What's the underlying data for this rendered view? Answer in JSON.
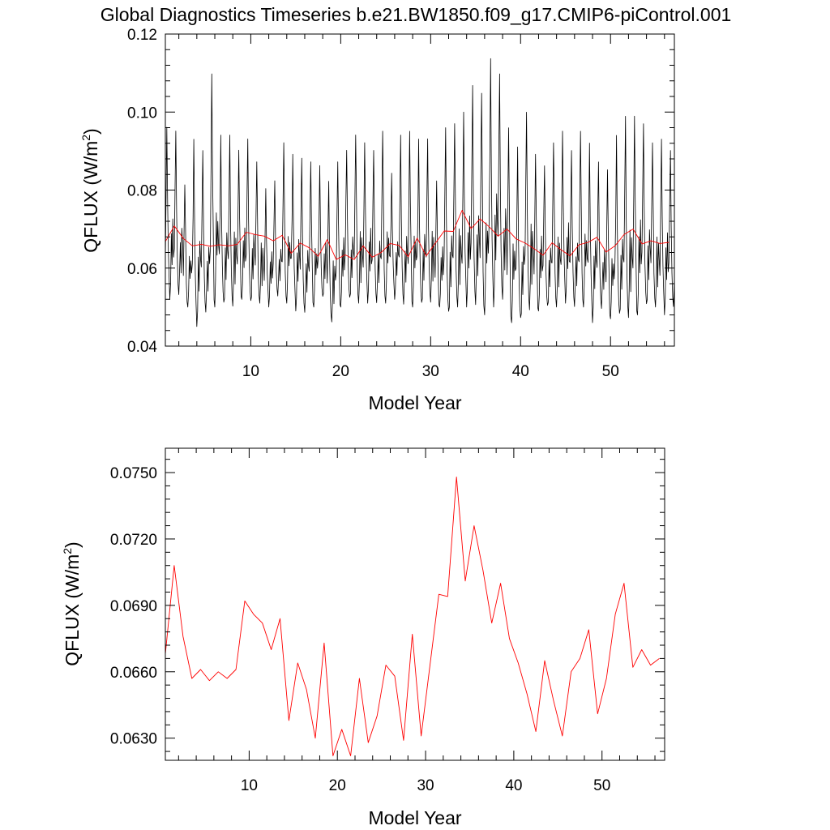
{
  "title": "Global Diagnostics Timeseries b.e21.BW1850.f09_g17.CMIP6-piControl.001",
  "colors": {
    "monthly": "#000000",
    "annual": "#ff0000",
    "axes": "#000000",
    "background": "#ffffff"
  },
  "chart_data": [
    {
      "type": "line",
      "xlabel": "Model Year",
      "ylabel_main": "QFLUX (W/m",
      "ylabel_sup": "2",
      "ylabel_end": ")",
      "xlim": [
        0.5,
        57.1
      ],
      "ylim": [
        0.04,
        0.12
      ],
      "xticks": [
        10,
        20,
        30,
        40,
        50
      ],
      "xtick_labels": [
        "10",
        "20",
        "30",
        "40",
        "50"
      ],
      "yticks": [
        0.04,
        0.06,
        0.08,
        0.1,
        0.12
      ],
      "ytick_labels": [
        "0.04",
        "0.06",
        "0.08",
        "0.10",
        "0.12"
      ],
      "grid": false,
      "series": [
        {
          "key": "monthly",
          "sampling": "monthly",
          "x_start": 0.5,
          "x_step": 0.08333,
          "peaks": [
            0.097,
            0.096,
            0.082,
            0.094,
            0.091,
            0.111,
            0.095,
            0.095,
            0.091,
            0.094,
            0.088,
            0.081,
            0.083,
            0.093,
            0.09,
            0.089,
            0.088,
            0.087,
            0.083,
            0.088,
            0.091,
            0.095,
            0.093,
            0.091,
            0.096,
            0.085,
            0.095,
            0.096,
            0.094,
            0.094,
            0.083,
            0.097,
            0.098,
            0.101,
            0.108,
            0.106,
            0.115,
            0.111,
            0.097,
            0.092,
            0.101,
            0.09,
            0.087,
            0.093,
            0.096,
            0.091,
            0.096,
            0.093,
            0.088,
            0.086,
            0.095,
            0.1,
            0.1,
            0.098,
            0.093,
            0.094,
            0.091
          ],
          "troughs": [
            0.052,
            0.052,
            0.05,
            0.045,
            0.048,
            0.05,
            0.049,
            0.05,
            0.052,
            0.05,
            0.051,
            0.05,
            0.052,
            0.051,
            0.049,
            0.048,
            0.05,
            0.051,
            0.046,
            0.05,
            0.051,
            0.051,
            0.051,
            0.05,
            0.051,
            0.052,
            0.05,
            0.05,
            0.049,
            0.051,
            0.05,
            0.047,
            0.05,
            0.05,
            0.049,
            0.048,
            0.05,
            0.051,
            0.046,
            0.045,
            0.049,
            0.049,
            0.049,
            0.05,
            0.051,
            0.049,
            0.05,
            0.046,
            0.049,
            0.047,
            0.046,
            0.047,
            0.048,
            0.049,
            0.05,
            0.048,
            0.049
          ]
        },
        {
          "key": "annual",
          "sampling": "annual",
          "x": [
            0.5,
            1.5,
            2.5,
            3.5,
            4.5,
            5.5,
            6.5,
            7.5,
            8.5,
            9.5,
            10.5,
            11.5,
            12.5,
            13.5,
            14.5,
            15.5,
            16.5,
            17.5,
            18.5,
            19.5,
            20.5,
            21.5,
            22.5,
            23.5,
            24.5,
            25.5,
            26.5,
            27.5,
            28.5,
            29.5,
            30.5,
            31.5,
            32.5,
            33.5,
            34.5,
            35.5,
            36.5,
            37.5,
            38.5,
            39.5,
            40.5,
            41.5,
            42.5,
            43.5,
            44.5,
            45.5,
            46.5,
            47.5,
            48.5,
            49.5,
            50.5,
            51.5,
            52.5,
            53.5,
            54.5,
            55.5,
            56.5
          ],
          "values": [
            0.0668,
            0.0708,
            0.0676,
            0.0657,
            0.0661,
            0.0656,
            0.066,
            0.0657,
            0.0661,
            0.0692,
            0.0686,
            0.0682,
            0.067,
            0.0684,
            0.0638,
            0.0664,
            0.0652,
            0.063,
            0.0673,
            0.0622,
            0.0634,
            0.0622,
            0.0657,
            0.0628,
            0.064,
            0.0663,
            0.0658,
            0.0629,
            0.0677,
            0.0631,
            0.0663,
            0.0695,
            0.0694,
            0.0748,
            0.0701,
            0.0726,
            0.0706,
            0.0682,
            0.07,
            0.0675,
            0.0664,
            0.065,
            0.0633,
            0.0665,
            0.0647,
            0.0631,
            0.066,
            0.0666,
            0.0679,
            0.0641,
            0.0657,
            0.0686,
            0.07,
            0.0662,
            0.067,
            0.0663,
            0.0666
          ]
        }
      ]
    },
    {
      "type": "line",
      "xlabel": "Model Year",
      "ylabel_main": "QFLUX (W/m",
      "ylabel_sup": "2",
      "ylabel_end": ")",
      "xlim": [
        0.5,
        57.1
      ],
      "ylim": [
        0.062,
        0.0761
      ],
      "xticks": [
        10,
        20,
        30,
        40,
        50
      ],
      "xtick_labels": [
        "10",
        "20",
        "30",
        "40",
        "50"
      ],
      "yticks": [
        0.063,
        0.066,
        0.069,
        0.072,
        0.075
      ],
      "ytick_labels": [
        "0.0630",
        "0.0660",
        "0.0690",
        "0.0720",
        "0.0750"
      ],
      "grid": false,
      "series": [
        {
          "key": "annual",
          "sampling": "annual",
          "same_as_panel_1": true
        }
      ]
    }
  ]
}
